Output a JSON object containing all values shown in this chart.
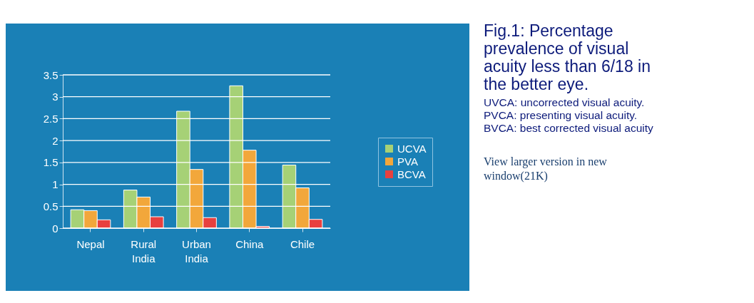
{
  "chart_data": {
    "type": "bar",
    "title": "Fig.1: Percentage prevalence of visual acuity less than 6/18 in the better eye.",
    "categories": [
      "Nepal",
      "Rural\nIndia",
      "Urban\nIndia",
      "China",
      "Chile"
    ],
    "series": [
      {
        "name": "UCVA",
        "color": "#a6d176",
        "values": [
          0.42,
          0.87,
          2.67,
          3.25,
          1.44
        ]
      },
      {
        "name": "PVA",
        "color": "#f2a73b",
        "values": [
          0.4,
          0.71,
          1.34,
          1.78,
          0.92
        ]
      },
      {
        "name": "BCVA",
        "color": "#e8403f",
        "values": [
          0.19,
          0.26,
          0.24,
          0.04,
          0.2
        ]
      }
    ],
    "ylim": [
      0,
      3.5
    ],
    "yticks": [
      0,
      0.5,
      1,
      1.5,
      2,
      2.5,
      3,
      3.5
    ],
    "grid": "y",
    "legend": "right",
    "annotations": [
      "UVCA: uncorrected visual acuity.",
      "PVCA: presenting visual acuity.",
      "BVCA: best corrected visual acuity",
      "View larger version in new window(21K)"
    ]
  }
}
